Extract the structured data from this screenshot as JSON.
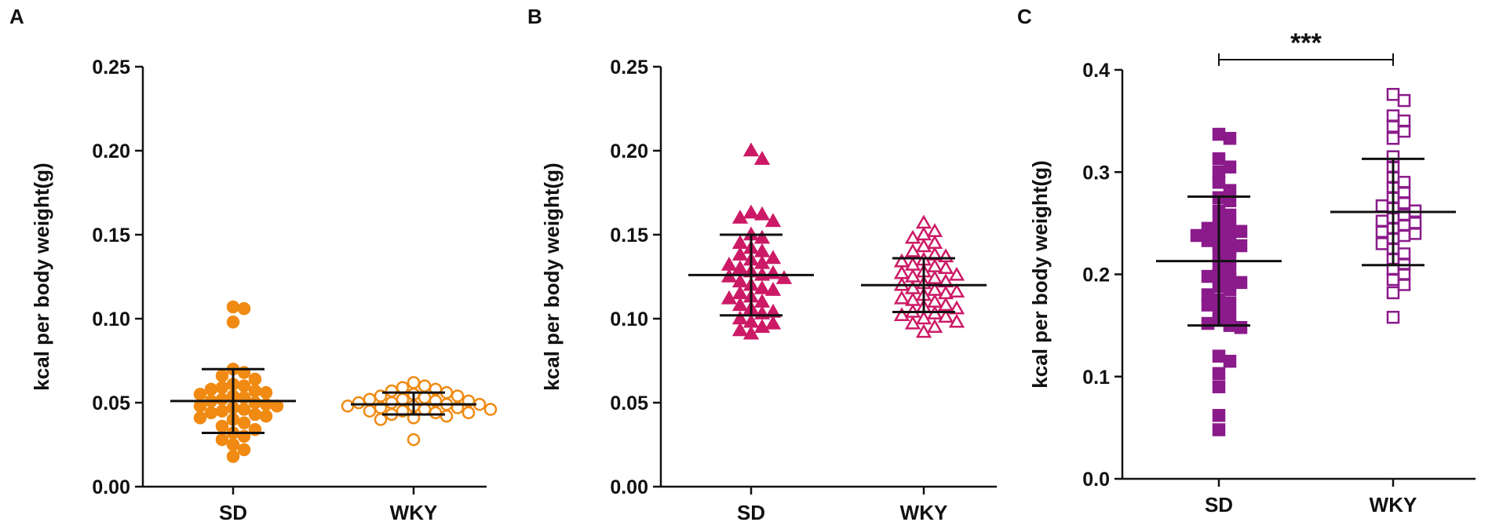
{
  "chart_data": [
    {
      "panel": "A",
      "type": "scatter",
      "title": "",
      "xlabel": "",
      "ylabel": "kcal per body weight(g)",
      "categories": [
        "SD",
        "WKY"
      ],
      "ylim": [
        0,
        0.25
      ],
      "yticks": [
        "0.00",
        "0.05",
        "0.10",
        "0.15",
        "0.20",
        "0.25"
      ],
      "marker": "circle",
      "color": "#f08a12",
      "series": [
        {
          "name": "SD",
          "filled": true,
          "mean": 0.051,
          "sd_low": 0.032,
          "sd_high": 0.07,
          "values": [
            0.107,
            0.106,
            0.098,
            0.07,
            0.068,
            0.066,
            0.064,
            0.061,
            0.06,
            0.059,
            0.058,
            0.057,
            0.056,
            0.055,
            0.054,
            0.053,
            0.052,
            0.051,
            0.05,
            0.049,
            0.048,
            0.048,
            0.047,
            0.046,
            0.045,
            0.044,
            0.043,
            0.042,
            0.041,
            0.04,
            0.038,
            0.036,
            0.034,
            0.032,
            0.03,
            0.028,
            0.025,
            0.022,
            0.018
          ]
        },
        {
          "name": "WKY",
          "filled": false,
          "mean": 0.049,
          "sd_low": 0.043,
          "sd_high": 0.056,
          "values": [
            0.062,
            0.06,
            0.059,
            0.058,
            0.057,
            0.056,
            0.055,
            0.054,
            0.054,
            0.053,
            0.052,
            0.052,
            0.051,
            0.051,
            0.05,
            0.05,
            0.049,
            0.049,
            0.048,
            0.048,
            0.047,
            0.047,
            0.046,
            0.046,
            0.045,
            0.045,
            0.044,
            0.044,
            0.043,
            0.042,
            0.041,
            0.04,
            0.028
          ]
        }
      ]
    },
    {
      "panel": "B",
      "type": "scatter",
      "title": "",
      "xlabel": "",
      "ylabel": "kcal per body weight(g)",
      "categories": [
        "SD",
        "WKY"
      ],
      "ylim": [
        0,
        0.25
      ],
      "yticks": [
        "0.00",
        "0.05",
        "0.10",
        "0.15",
        "0.20",
        "0.25"
      ],
      "marker": "triangle",
      "color": "#cc1a66",
      "series": [
        {
          "name": "SD",
          "filled": true,
          "mean": 0.126,
          "sd_low": 0.102,
          "sd_high": 0.15,
          "values": [
            0.2,
            0.195,
            0.163,
            0.162,
            0.16,
            0.158,
            0.15,
            0.148,
            0.145,
            0.142,
            0.14,
            0.138,
            0.136,
            0.135,
            0.133,
            0.132,
            0.13,
            0.128,
            0.127,
            0.126,
            0.125,
            0.124,
            0.122,
            0.12,
            0.118,
            0.117,
            0.115,
            0.113,
            0.112,
            0.11,
            0.108,
            0.106,
            0.104,
            0.103,
            0.1,
            0.098,
            0.097,
            0.095,
            0.093,
            0.091
          ]
        },
        {
          "name": "WKY",
          "filled": false,
          "mean": 0.12,
          "sd_low": 0.104,
          "sd_high": 0.136,
          "values": [
            0.157,
            0.152,
            0.15,
            0.148,
            0.145,
            0.143,
            0.14,
            0.138,
            0.137,
            0.135,
            0.134,
            0.132,
            0.131,
            0.13,
            0.128,
            0.127,
            0.126,
            0.125,
            0.124,
            0.122,
            0.121,
            0.12,
            0.118,
            0.117,
            0.116,
            0.115,
            0.114,
            0.112,
            0.111,
            0.11,
            0.108,
            0.107,
            0.106,
            0.104,
            0.103,
            0.102,
            0.101,
            0.1,
            0.098,
            0.097,
            0.095,
            0.092
          ]
        }
      ]
    },
    {
      "panel": "C",
      "type": "scatter",
      "title": "",
      "xlabel": "",
      "ylabel": "kcal per body weight(g)",
      "categories": [
        "SD",
        "WKY"
      ],
      "ylim": [
        0,
        0.4
      ],
      "yticks": [
        "0.0",
        "0.1",
        "0.2",
        "0.3",
        "0.4"
      ],
      "marker": "square",
      "color": "#8b1a8b",
      "significance": "***",
      "series": [
        {
          "name": "SD",
          "filled": true,
          "mean": 0.213,
          "sd_low": 0.15,
          "sd_high": 0.276,
          "values": [
            0.337,
            0.333,
            0.313,
            0.305,
            0.3,
            0.29,
            0.282,
            0.275,
            0.272,
            0.262,
            0.258,
            0.25,
            0.247,
            0.245,
            0.242,
            0.24,
            0.238,
            0.235,
            0.233,
            0.23,
            0.228,
            0.225,
            0.22,
            0.215,
            0.21,
            0.205,
            0.2,
            0.198,
            0.195,
            0.192,
            0.188,
            0.185,
            0.18,
            0.175,
            0.172,
            0.17,
            0.165,
            0.16,
            0.155,
            0.152,
            0.15,
            0.148,
            0.12,
            0.115,
            0.103,
            0.09,
            0.062,
            0.048
          ]
        },
        {
          "name": "WKY",
          "filled": false,
          "mean": 0.261,
          "sd_low": 0.209,
          "sd_high": 0.313,
          "values": [
            0.376,
            0.37,
            0.355,
            0.35,
            0.345,
            0.34,
            0.333,
            0.315,
            0.305,
            0.295,
            0.29,
            0.285,
            0.28,
            0.275,
            0.27,
            0.267,
            0.265,
            0.262,
            0.258,
            0.255,
            0.252,
            0.25,
            0.248,
            0.245,
            0.242,
            0.24,
            0.238,
            0.235,
            0.23,
            0.225,
            0.22,
            0.215,
            0.21,
            0.205,
            0.2,
            0.195,
            0.19,
            0.182,
            0.158
          ]
        }
      ]
    }
  ]
}
